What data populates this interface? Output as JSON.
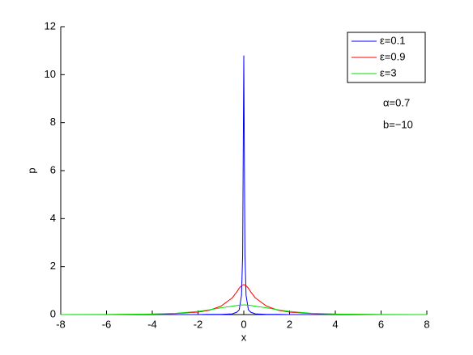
{
  "chart_data": {
    "type": "line",
    "xlabel": "x",
    "ylabel": "p",
    "x": [
      -8,
      -6,
      -4,
      -3,
      -2,
      -1.5,
      -1,
      -0.5,
      -0.3,
      -0.2,
      -0.1,
      -0.05,
      0,
      0.05,
      0.1,
      0.2,
      0.3,
      0.5,
      1,
      1.5,
      2,
      3,
      4,
      6,
      8
    ],
    "series": [
      {
        "name": "ε=0.1",
        "color": "#0000ff",
        "values": [
          0,
          0,
          0,
          0,
          0,
          0.01,
          0.01,
          0.03,
          0.1,
          0.2,
          0.8,
          2.5,
          10.8,
          2.5,
          0.8,
          0.2,
          0.1,
          0.03,
          0.01,
          0.01,
          0,
          0,
          0,
          0,
          0
        ]
      },
      {
        "name": "ε=0.9",
        "color": "#ff0000",
        "values": [
          0,
          0,
          0.02,
          0.04,
          0.1,
          0.18,
          0.35,
          0.7,
          0.95,
          1.1,
          1.2,
          1.23,
          1.25,
          1.23,
          1.2,
          1.1,
          0.95,
          0.7,
          0.35,
          0.18,
          0.1,
          0.04,
          0.02,
          0,
          0
        ]
      },
      {
        "name": "ε=3",
        "color": "#00dd00",
        "values": [
          0,
          0.005,
          0.02,
          0.05,
          0.13,
          0.2,
          0.28,
          0.35,
          0.38,
          0.39,
          0.4,
          0.4,
          0.4,
          0.4,
          0.4,
          0.39,
          0.38,
          0.35,
          0.28,
          0.2,
          0.13,
          0.05,
          0.02,
          0.005,
          0
        ]
      }
    ],
    "annotations": [
      "α=0.7",
      "b=−10"
    ],
    "xlim": [
      -8,
      8
    ],
    "xticks": [
      -8,
      -6,
      -4,
      -2,
      0,
      2,
      4,
      6,
      8
    ],
    "ylim": [
      0,
      12
    ],
    "yticks": [
      0,
      2,
      4,
      6,
      8,
      10,
      12
    ],
    "legend": "upper right",
    "grid": false
  }
}
